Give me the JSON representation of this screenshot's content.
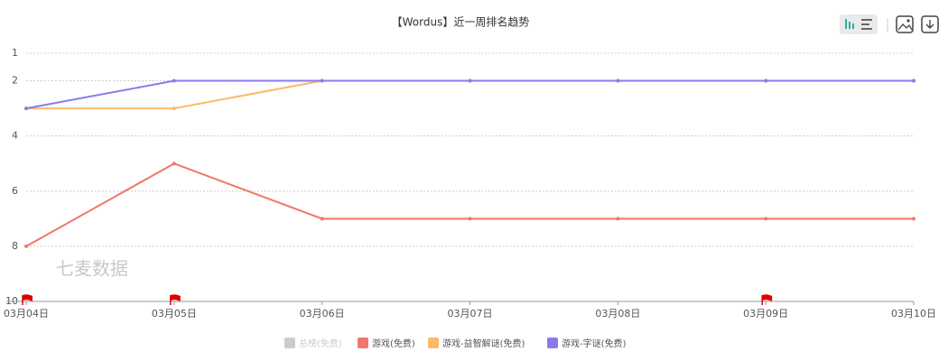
{
  "chart_data": {
    "type": "line",
    "title": "【Wordus】近一周排名趋势",
    "watermark": "七麦数据",
    "categories": [
      "03月04日",
      "03月05日",
      "03月06日",
      "03月07日",
      "03月08日",
      "03月09日",
      "03月10日"
    ],
    "series": [
      {
        "name": "总榜(免费)",
        "color": "#cccccc",
        "hidden": true,
        "values": [
          null,
          null,
          null,
          null,
          null,
          null,
          null
        ]
      },
      {
        "name": "游戏(免费)",
        "color": "#f0776a",
        "values": [
          8,
          5,
          7,
          7,
          7,
          7,
          7
        ]
      },
      {
        "name": "游戏-益智解谜(免费)",
        "color": "#fcb96b",
        "values": [
          3,
          3,
          2,
          2,
          2,
          2,
          2
        ]
      },
      {
        "name": "游戏-字谜(免费)",
        "color": "#8a7af0",
        "values": [
          3,
          2,
          2,
          2,
          2,
          2,
          2
        ]
      }
    ],
    "flags": [
      0,
      1,
      5
    ],
    "ylim": [
      1,
      10
    ],
    "y_inverted": true,
    "yticks": [
      1,
      2,
      4,
      6,
      8,
      10
    ],
    "grid": true
  }
}
